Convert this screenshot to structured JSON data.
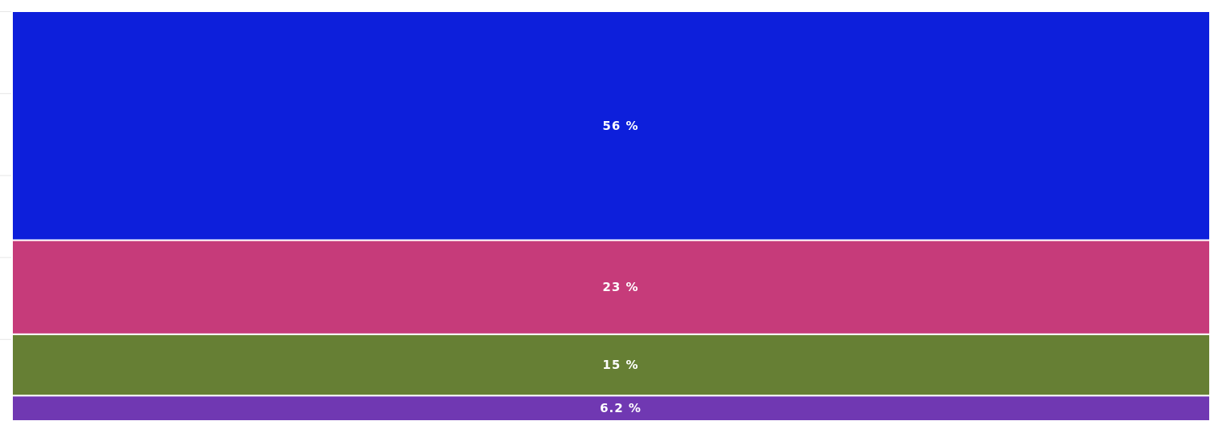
{
  "chart_data": {
    "type": "bar",
    "orientation": "stacked-100",
    "categories": [
      ""
    ],
    "series": [
      {
        "value": 56,
        "label": "56 %",
        "color": "#0d1fdb"
      },
      {
        "value": 23,
        "label": "23 %",
        "color": "#c63b7a"
      },
      {
        "value": 15,
        "label": "15 %",
        "color": "#667f34"
      },
      {
        "value": 6.2,
        "label": "6.2 %",
        "color": "#7038b2"
      }
    ],
    "ylim": [
      0,
      100
    ],
    "grid": true,
    "legend": "none"
  }
}
